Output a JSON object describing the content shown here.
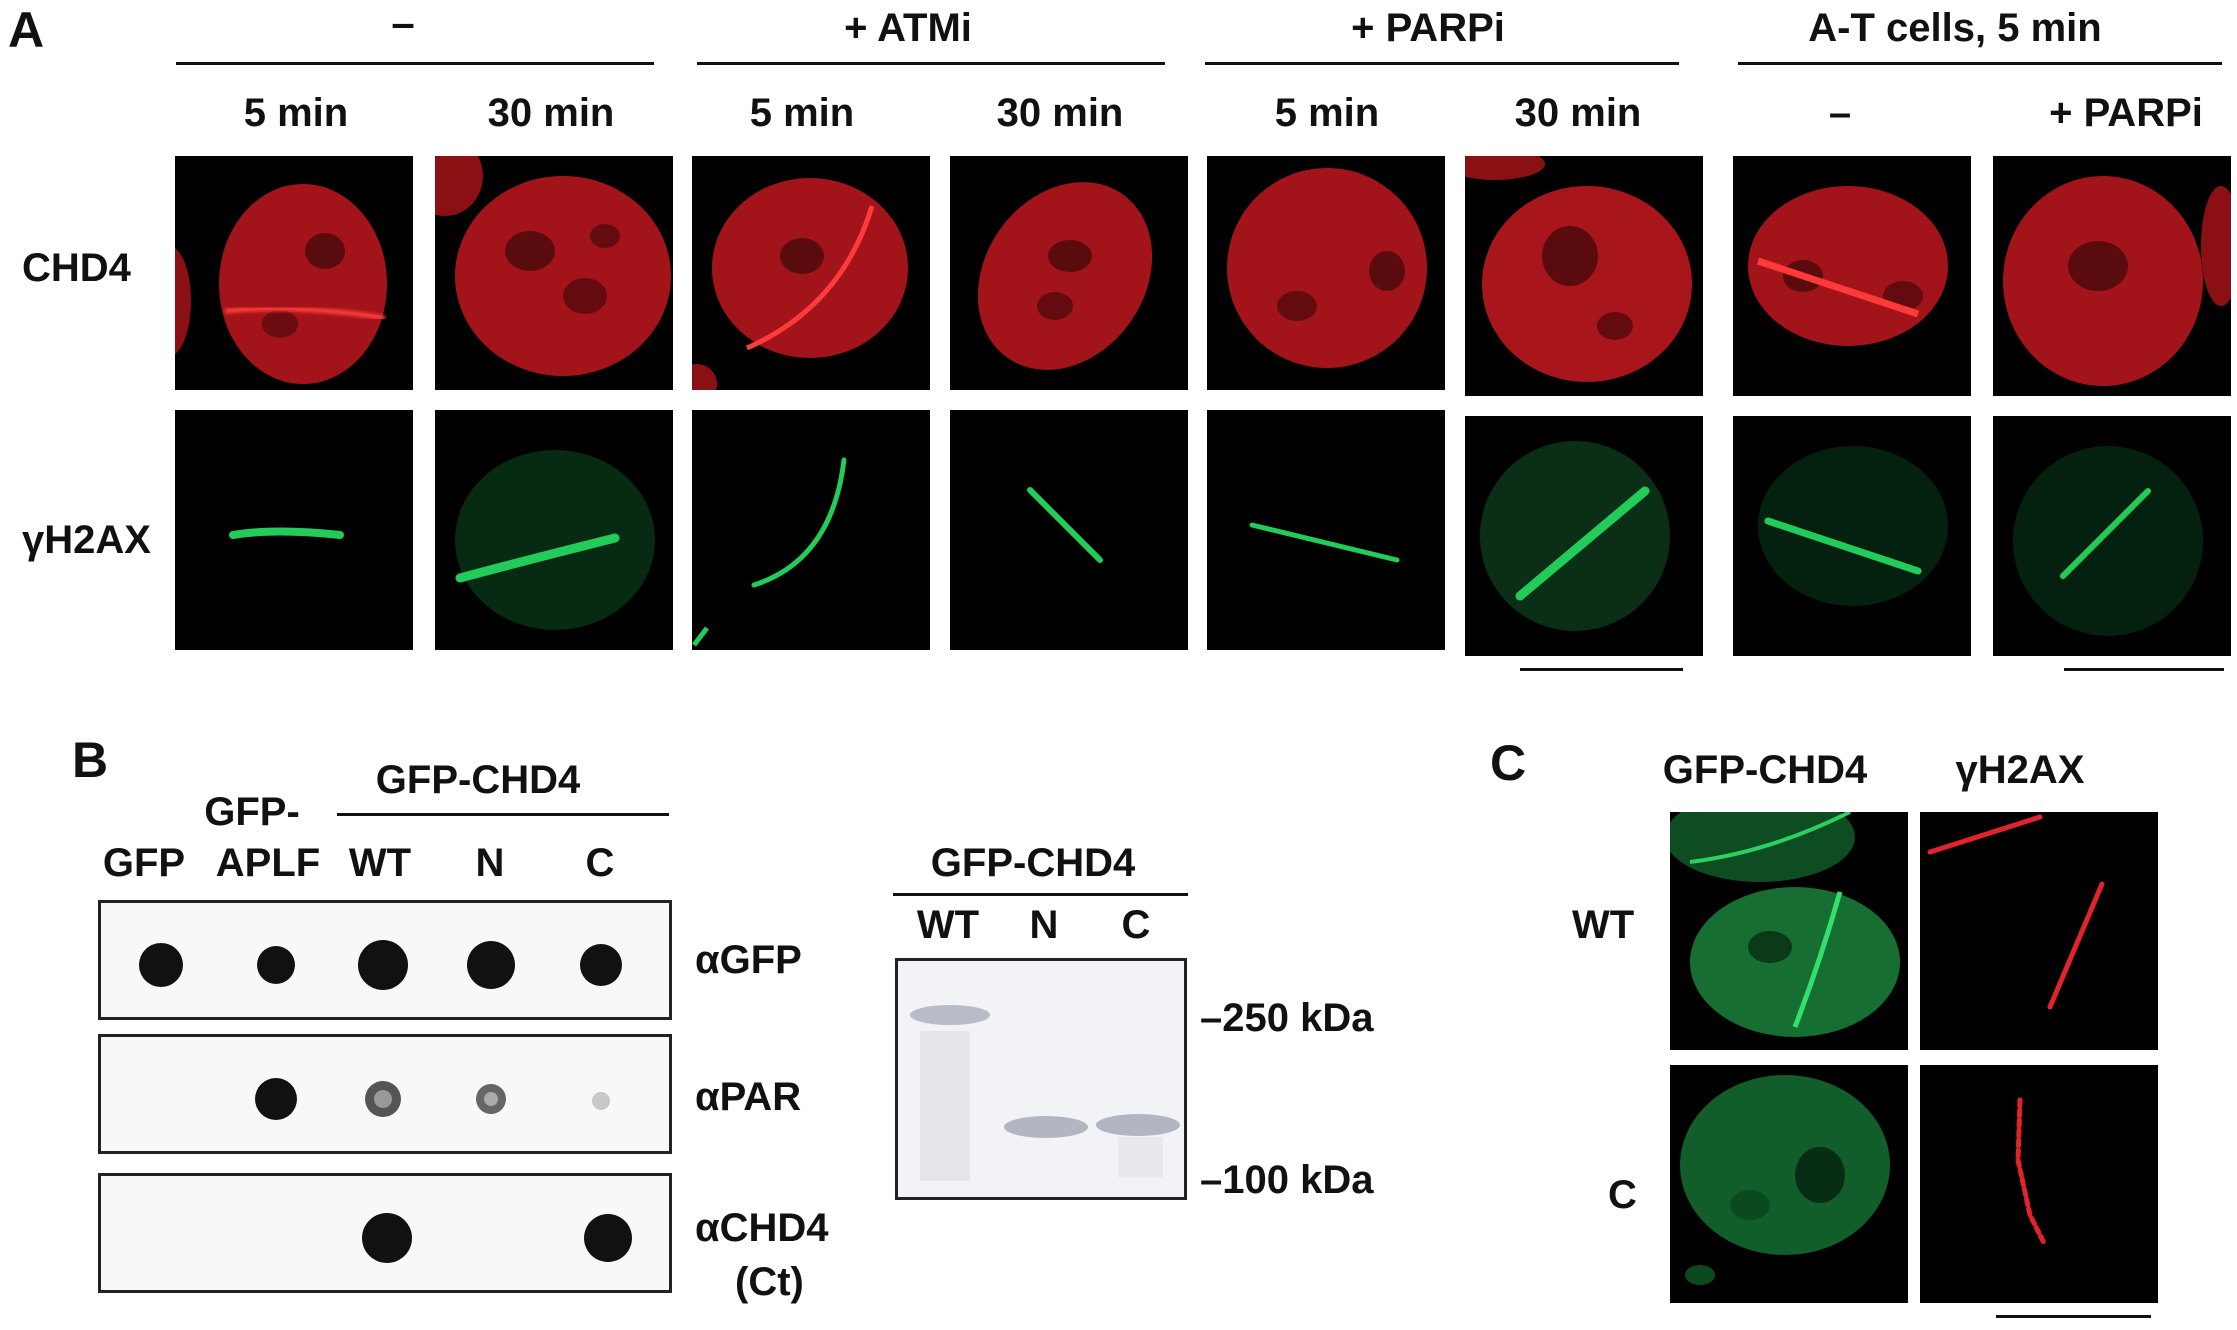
{
  "panelA": {
    "letter": "A",
    "group_headers": [
      "–",
      "+ ATMi",
      "+ PARPi",
      "A-T cells, 5 min"
    ],
    "columns": [
      "5 min",
      "30 min",
      "5 min",
      "30 min",
      "5 min",
      "30 min",
      "–",
      "+ PARPi"
    ],
    "rows": [
      "CHD4",
      "γH2AX"
    ],
    "colors": {
      "chd4": "#c4161c",
      "h2ax": "#1bb34a"
    }
  },
  "panelB": {
    "letter": "B",
    "lane_labels": [
      "GFP",
      "GFP-\nAPLF",
      "WT",
      "N",
      "C"
    ],
    "lane_label_gfp": "GFP",
    "lane_label_aplf_1": "GFP-",
    "lane_label_aplf_2": "APLF",
    "group_header": "GFP-CHD4",
    "antibodies": [
      "αGFP",
      "αPAR",
      "αCHD4",
      "(Ct)"
    ],
    "gel": {
      "title": "GFP-CHD4",
      "lanes": [
        "WT",
        "N",
        "C"
      ],
      "markers": [
        "–250 kDa",
        "–100 kDa"
      ]
    }
  },
  "panelC": {
    "letter": "C",
    "columns": [
      "GFP-CHD4",
      "γH2AX"
    ],
    "rows": [
      "WT",
      "C"
    ],
    "colors": {
      "gfp": "#1e9a46",
      "h2ax": "#d0181e"
    }
  }
}
